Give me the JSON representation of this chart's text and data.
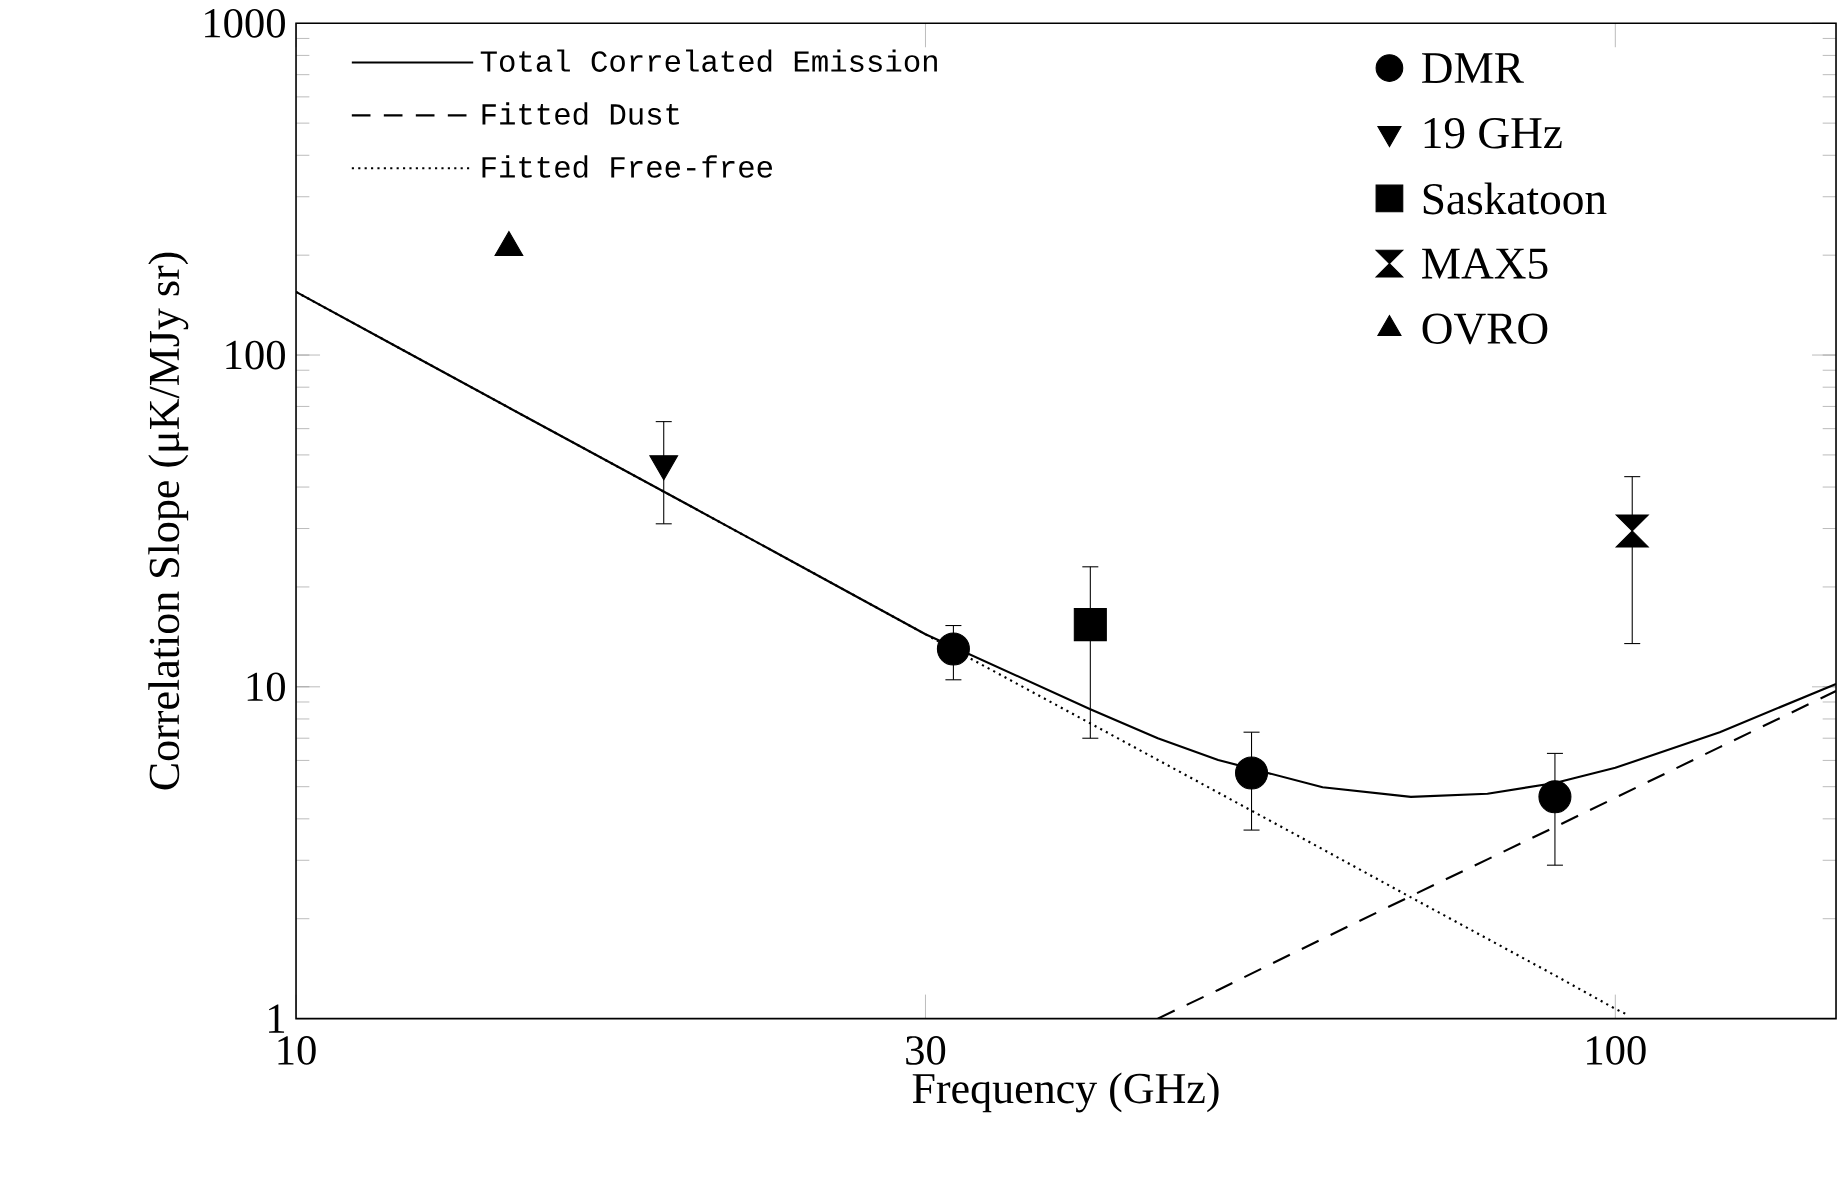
{
  "chart_data": {
    "type": "scatter",
    "xlabel": "Frequency (GHz)",
    "ylabel": "Correlation Slope (μK/MJy sr)",
    "log": "xy",
    "xlim": [
      10,
      147
    ],
    "ylim": [
      1,
      1000
    ],
    "xticks": [
      10,
      30,
      100
    ],
    "yticks": [
      1,
      10,
      100,
      1000
    ],
    "legend": "top",
    "grid": false,
    "series": [
      {
        "name": "Total Correlated Emission",
        "type": "line",
        "line_style": "solid",
        "color": "#000000",
        "x": [
          10,
          12,
          15,
          20,
          25,
          30,
          40,
          45,
          50,
          60,
          70,
          80,
          90,
          100,
          120,
          147
        ],
        "values": [
          155,
          104.5,
          64.5,
          34.7,
          21.4,
          14.4,
          8.56,
          7.0,
          6.02,
          4.98,
          4.66,
          4.76,
          5.13,
          5.7,
          7.3,
          10.2
        ]
      },
      {
        "name": "Fitted Dust",
        "type": "line",
        "line_style": "dashed",
        "color": "#000000",
        "x": [
          45,
          50,
          60,
          70,
          80,
          90,
          100,
          120,
          147
        ],
        "values": [
          1,
          1.22,
          1.74,
          2.34,
          3.02,
          3.78,
          4.63,
          6.58,
          9.71
        ]
      },
      {
        "name": "Fitted Free-free",
        "type": "line",
        "line_style": "dotted",
        "color": "#000000",
        "x": [
          10,
          12,
          15,
          20,
          25,
          30,
          40,
          50,
          60,
          70,
          80,
          90,
          100,
          102
        ],
        "values": [
          155,
          104.5,
          64.5,
          34.7,
          21.4,
          14.4,
          7.76,
          4.8,
          3.24,
          2.32,
          1.74,
          1.35,
          1.07,
          1.03
        ]
      },
      {
        "name": "DMR",
        "marker": "circle",
        "color": "#000000",
        "x": [
          31.5,
          53,
          90
        ],
        "values": [
          13,
          5.5,
          4.66
        ],
        "errors": [
          [
            10.5,
            15.3
          ],
          [
            3.7,
            7.3
          ],
          [
            2.9,
            6.3
          ]
        ]
      },
      {
        "name": "19 GHz",
        "marker": "triangle-down",
        "color": "#000000",
        "x": [
          19
        ],
        "values": [
          47
        ],
        "errors": [
          [
            31,
            63
          ]
        ]
      },
      {
        "name": "Saskatoon",
        "marker": "square",
        "color": "#000000",
        "x": [
          40
        ],
        "values": [
          15.4
        ],
        "errors": [
          [
            7,
            23
          ]
        ]
      },
      {
        "name": "MAX5",
        "color": "#000000",
        "x": [
          103
        ],
        "values": [
          29.5
        ],
        "errors": [
          [
            13.5,
            43
          ]
        ]
      },
      {
        "name": "OVRO",
        "marker": "triangle",
        "color": "#000000",
        "x": [
          14.5
        ],
        "values": [
          211
        ]
      }
    ]
  }
}
